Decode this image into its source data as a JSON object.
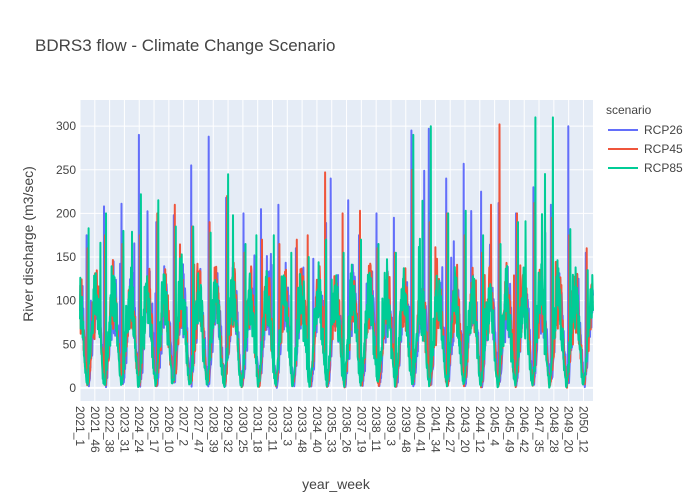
{
  "chart_data": {
    "type": "line",
    "title": "BDRS3 flow - Climate Change Scenario",
    "xlabel": "year_week",
    "ylabel": "River discharge (m3/sec)",
    "ylim": [
      -15,
      330
    ],
    "yticks": [
      0,
      50,
      100,
      150,
      200,
      250,
      300
    ],
    "xticks": [
      "2021_1",
      "2021_46",
      "2022_38",
      "2023_31",
      "2024_24",
      "2025_17",
      "2026_10",
      "2027_2",
      "2027_47",
      "2028_39",
      "2029_32",
      "2030_25",
      "2031_18",
      "2032_11",
      "2033_3",
      "2033_48",
      "2034_40",
      "2035_33",
      "2036_26",
      "2037_19",
      "2038_11",
      "2039_3",
      "2039_48",
      "2040_41",
      "2041_34",
      "2042_27",
      "2043_20",
      "2044_12",
      "2045_4",
      "2045_49",
      "2046_42",
      "2047_35",
      "2048_28",
      "2049_20",
      "2050_12"
    ],
    "week_count": 1560,
    "grid": true,
    "legend": {
      "title": "scenario",
      "placement": "right"
    },
    "series": [
      {
        "name": "RCP26",
        "color": "#636efa",
        "yearly_peaks": [
          175,
          208,
          211,
          290,
          190,
          198,
          255,
          288,
          218,
          200,
          205,
          210,
          160,
          148,
          240,
          215,
          175,
          200,
          195,
          295,
          297,
          240,
          257,
          225,
          212,
          200,
          230,
          210,
          300,
          155
        ]
      },
      {
        "name": "RCP45",
        "color": "#EF553B",
        "yearly_peaks": [
          160,
          175,
          165,
          175,
          200,
          210,
          185,
          190,
          220,
          155,
          170,
          165,
          170,
          175,
          247,
          200,
          203,
          160,
          155,
          250,
          190,
          200,
          175,
          155,
          302,
          200,
          212,
          195,
          175,
          160
        ]
      },
      {
        "name": "RCP85",
        "color": "#00cc96",
        "yearly_peaks": [
          183,
          200,
          180,
          222,
          215,
          185,
          185,
          178,
          245,
          165,
          175,
          175,
          155,
          150,
          170,
          155,
          170,
          165,
          155,
          290,
          300,
          200,
          203,
          175,
          165,
          190,
          310,
          310,
          182,
          135
        ]
      }
    ]
  }
}
